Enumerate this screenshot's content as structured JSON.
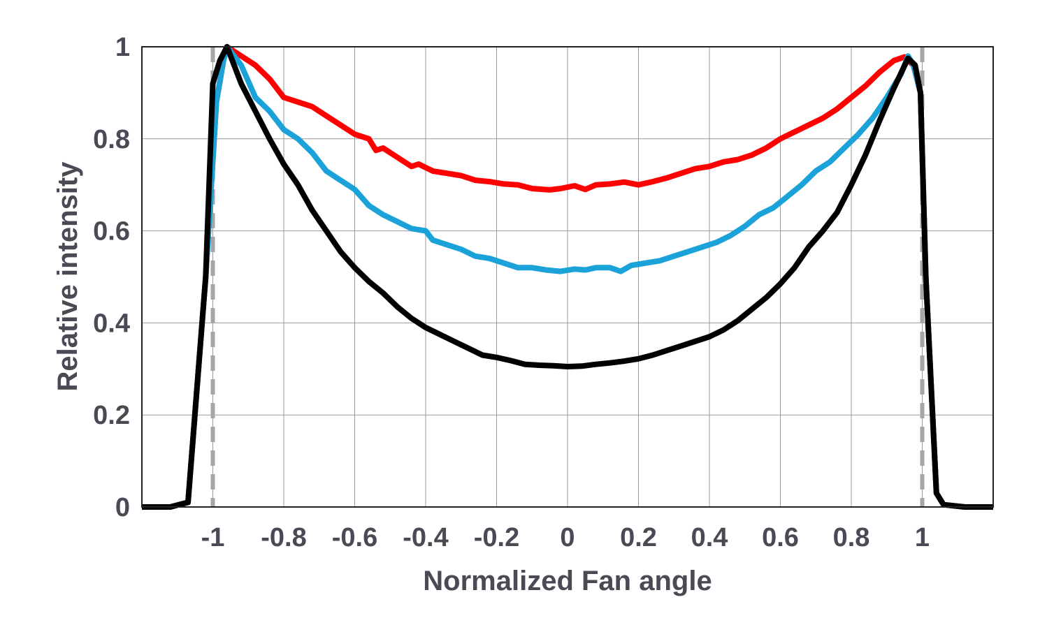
{
  "chart_data": {
    "type": "line",
    "title": "",
    "xlabel": "Normalized Fan angle",
    "ylabel": "Relative intensity",
    "xlim": [
      -1.2,
      1.2
    ],
    "ylim": [
      0,
      1
    ],
    "grid": true,
    "x_ticks": [
      -1,
      -0.8,
      -0.6,
      -0.4,
      -0.2,
      0,
      0.2,
      0.4,
      0.6,
      0.8,
      1
    ],
    "x_tick_labels": [
      "-1",
      "-0.8",
      "-0.6",
      "-0.4",
      "-0.2",
      "0",
      "0.2",
      "0.4",
      "0.6",
      "0.8",
      "1"
    ],
    "y_ticks": [
      0,
      0.2,
      0.4,
      0.6,
      0.8,
      1
    ],
    "y_tick_labels": [
      "0",
      "0.2",
      "0.4",
      "0.6",
      "0.8",
      "1"
    ],
    "reference_lines": [
      {
        "name": "left-fan-edge",
        "x": -1,
        "style": "dashed",
        "color": "#a6a6a6"
      },
      {
        "name": "right-fan-edge",
        "x": 1,
        "style": "dashed",
        "color": "#a6a6a6"
      }
    ],
    "series": [
      {
        "name": "red",
        "color": "#ff0000",
        "points": [
          [
            -1.2,
            0
          ],
          [
            -1.12,
            0
          ],
          [
            -1.07,
            0.01
          ],
          [
            -1.02,
            0.5
          ],
          [
            -0.99,
            0.88
          ],
          [
            -0.97,
            0.97
          ],
          [
            -0.96,
            1.0
          ],
          [
            -0.92,
            0.98
          ],
          [
            -0.88,
            0.96
          ],
          [
            -0.84,
            0.93
          ],
          [
            -0.8,
            0.89
          ],
          [
            -0.76,
            0.88
          ],
          [
            -0.72,
            0.87
          ],
          [
            -0.68,
            0.85
          ],
          [
            -0.64,
            0.83
          ],
          [
            -0.6,
            0.81
          ],
          [
            -0.56,
            0.8
          ],
          [
            -0.54,
            0.775
          ],
          [
            -0.52,
            0.78
          ],
          [
            -0.48,
            0.76
          ],
          [
            -0.44,
            0.74
          ],
          [
            -0.42,
            0.745
          ],
          [
            -0.38,
            0.73
          ],
          [
            -0.34,
            0.725
          ],
          [
            -0.3,
            0.72
          ],
          [
            -0.26,
            0.71
          ],
          [
            -0.22,
            0.707
          ],
          [
            -0.18,
            0.702
          ],
          [
            -0.14,
            0.7
          ],
          [
            -0.1,
            0.692
          ],
          [
            -0.05,
            0.689
          ],
          [
            -0.02,
            0.692
          ],
          [
            0.02,
            0.698
          ],
          [
            0.05,
            0.69
          ],
          [
            0.08,
            0.7
          ],
          [
            0.12,
            0.702
          ],
          [
            0.16,
            0.706
          ],
          [
            0.2,
            0.7
          ],
          [
            0.24,
            0.707
          ],
          [
            0.28,
            0.715
          ],
          [
            0.32,
            0.725
          ],
          [
            0.36,
            0.735
          ],
          [
            0.4,
            0.74
          ],
          [
            0.44,
            0.75
          ],
          [
            0.48,
            0.755
          ],
          [
            0.52,
            0.765
          ],
          [
            0.56,
            0.78
          ],
          [
            0.6,
            0.8
          ],
          [
            0.64,
            0.815
          ],
          [
            0.68,
            0.83
          ],
          [
            0.72,
            0.845
          ],
          [
            0.76,
            0.865
          ],
          [
            0.8,
            0.89
          ],
          [
            0.84,
            0.915
          ],
          [
            0.88,
            0.945
          ],
          [
            0.92,
            0.97
          ],
          [
            0.95,
            0.978
          ],
          [
            0.975,
            0.96
          ],
          [
            0.995,
            0.9
          ],
          [
            1.01,
            0.5
          ],
          [
            1.04,
            0.03
          ],
          [
            1.06,
            0.005
          ],
          [
            1.12,
            0
          ],
          [
            1.2,
            0
          ]
        ]
      },
      {
        "name": "blue",
        "color": "#1ba3d9",
        "points": [
          [
            -1.2,
            0
          ],
          [
            -1.12,
            0
          ],
          [
            -1.07,
            0.01
          ],
          [
            -1.02,
            0.5
          ],
          [
            -0.99,
            0.88
          ],
          [
            -0.97,
            0.97
          ],
          [
            -0.96,
            1.0
          ],
          [
            -0.92,
            0.96
          ],
          [
            -0.88,
            0.89
          ],
          [
            -0.84,
            0.86
          ],
          [
            -0.8,
            0.82
          ],
          [
            -0.76,
            0.8
          ],
          [
            -0.72,
            0.77
          ],
          [
            -0.68,
            0.73
          ],
          [
            -0.64,
            0.71
          ],
          [
            -0.6,
            0.69
          ],
          [
            -0.56,
            0.655
          ],
          [
            -0.52,
            0.635
          ],
          [
            -0.48,
            0.62
          ],
          [
            -0.44,
            0.605
          ],
          [
            -0.4,
            0.6
          ],
          [
            -0.38,
            0.58
          ],
          [
            -0.34,
            0.57
          ],
          [
            -0.3,
            0.56
          ],
          [
            -0.26,
            0.545
          ],
          [
            -0.22,
            0.54
          ],
          [
            -0.18,
            0.53
          ],
          [
            -0.14,
            0.52
          ],
          [
            -0.1,
            0.52
          ],
          [
            -0.06,
            0.515
          ],
          [
            -0.02,
            0.512
          ],
          [
            0.02,
            0.517
          ],
          [
            0.05,
            0.515
          ],
          [
            0.08,
            0.52
          ],
          [
            0.12,
            0.52
          ],
          [
            0.15,
            0.512
          ],
          [
            0.18,
            0.525
          ],
          [
            0.22,
            0.53
          ],
          [
            0.26,
            0.535
          ],
          [
            0.3,
            0.545
          ],
          [
            0.34,
            0.555
          ],
          [
            0.38,
            0.565
          ],
          [
            0.42,
            0.575
          ],
          [
            0.46,
            0.59
          ],
          [
            0.5,
            0.61
          ],
          [
            0.54,
            0.635
          ],
          [
            0.58,
            0.65
          ],
          [
            0.62,
            0.675
          ],
          [
            0.66,
            0.7
          ],
          [
            0.7,
            0.73
          ],
          [
            0.74,
            0.75
          ],
          [
            0.78,
            0.78
          ],
          [
            0.82,
            0.81
          ],
          [
            0.86,
            0.845
          ],
          [
            0.9,
            0.89
          ],
          [
            0.94,
            0.94
          ],
          [
            0.96,
            0.98
          ],
          [
            0.975,
            0.96
          ],
          [
            0.995,
            0.9
          ],
          [
            1.01,
            0.5
          ],
          [
            1.04,
            0.03
          ],
          [
            1.06,
            0.005
          ],
          [
            1.12,
            0
          ],
          [
            1.2,
            0
          ]
        ]
      },
      {
        "name": "black",
        "color": "#000000",
        "points": [
          [
            -1.2,
            0
          ],
          [
            -1.12,
            0
          ],
          [
            -1.07,
            0.01
          ],
          [
            -1.02,
            0.5
          ],
          [
            -1.0,
            0.92
          ],
          [
            -0.98,
            0.97
          ],
          [
            -0.96,
            1.0
          ],
          [
            -0.94,
            0.96
          ],
          [
            -0.92,
            0.92
          ],
          [
            -0.88,
            0.86
          ],
          [
            -0.84,
            0.8
          ],
          [
            -0.8,
            0.745
          ],
          [
            -0.76,
            0.7
          ],
          [
            -0.72,
            0.645
          ],
          [
            -0.68,
            0.6
          ],
          [
            -0.64,
            0.555
          ],
          [
            -0.6,
            0.52
          ],
          [
            -0.56,
            0.49
          ],
          [
            -0.52,
            0.465
          ],
          [
            -0.48,
            0.435
          ],
          [
            -0.44,
            0.41
          ],
          [
            -0.4,
            0.39
          ],
          [
            -0.36,
            0.375
          ],
          [
            -0.32,
            0.36
          ],
          [
            -0.28,
            0.345
          ],
          [
            -0.24,
            0.33
          ],
          [
            -0.2,
            0.325
          ],
          [
            -0.16,
            0.318
          ],
          [
            -0.12,
            0.31
          ],
          [
            -0.08,
            0.308
          ],
          [
            -0.04,
            0.307
          ],
          [
            0.0,
            0.305
          ],
          [
            0.04,
            0.306
          ],
          [
            0.08,
            0.31
          ],
          [
            0.12,
            0.313
          ],
          [
            0.16,
            0.317
          ],
          [
            0.2,
            0.322
          ],
          [
            0.24,
            0.33
          ],
          [
            0.28,
            0.34
          ],
          [
            0.32,
            0.35
          ],
          [
            0.36,
            0.36
          ],
          [
            0.4,
            0.37
          ],
          [
            0.44,
            0.385
          ],
          [
            0.48,
            0.405
          ],
          [
            0.52,
            0.43
          ],
          [
            0.56,
            0.455
          ],
          [
            0.6,
            0.485
          ],
          [
            0.64,
            0.52
          ],
          [
            0.68,
            0.565
          ],
          [
            0.72,
            0.6
          ],
          [
            0.76,
            0.64
          ],
          [
            0.8,
            0.7
          ],
          [
            0.84,
            0.765
          ],
          [
            0.88,
            0.84
          ],
          [
            0.92,
            0.91
          ],
          [
            0.96,
            0.975
          ],
          [
            0.98,
            0.96
          ],
          [
            0.995,
            0.9
          ],
          [
            1.01,
            0.5
          ],
          [
            1.04,
            0.03
          ],
          [
            1.06,
            0.005
          ],
          [
            1.12,
            0
          ],
          [
            1.2,
            0
          ]
        ]
      }
    ]
  }
}
